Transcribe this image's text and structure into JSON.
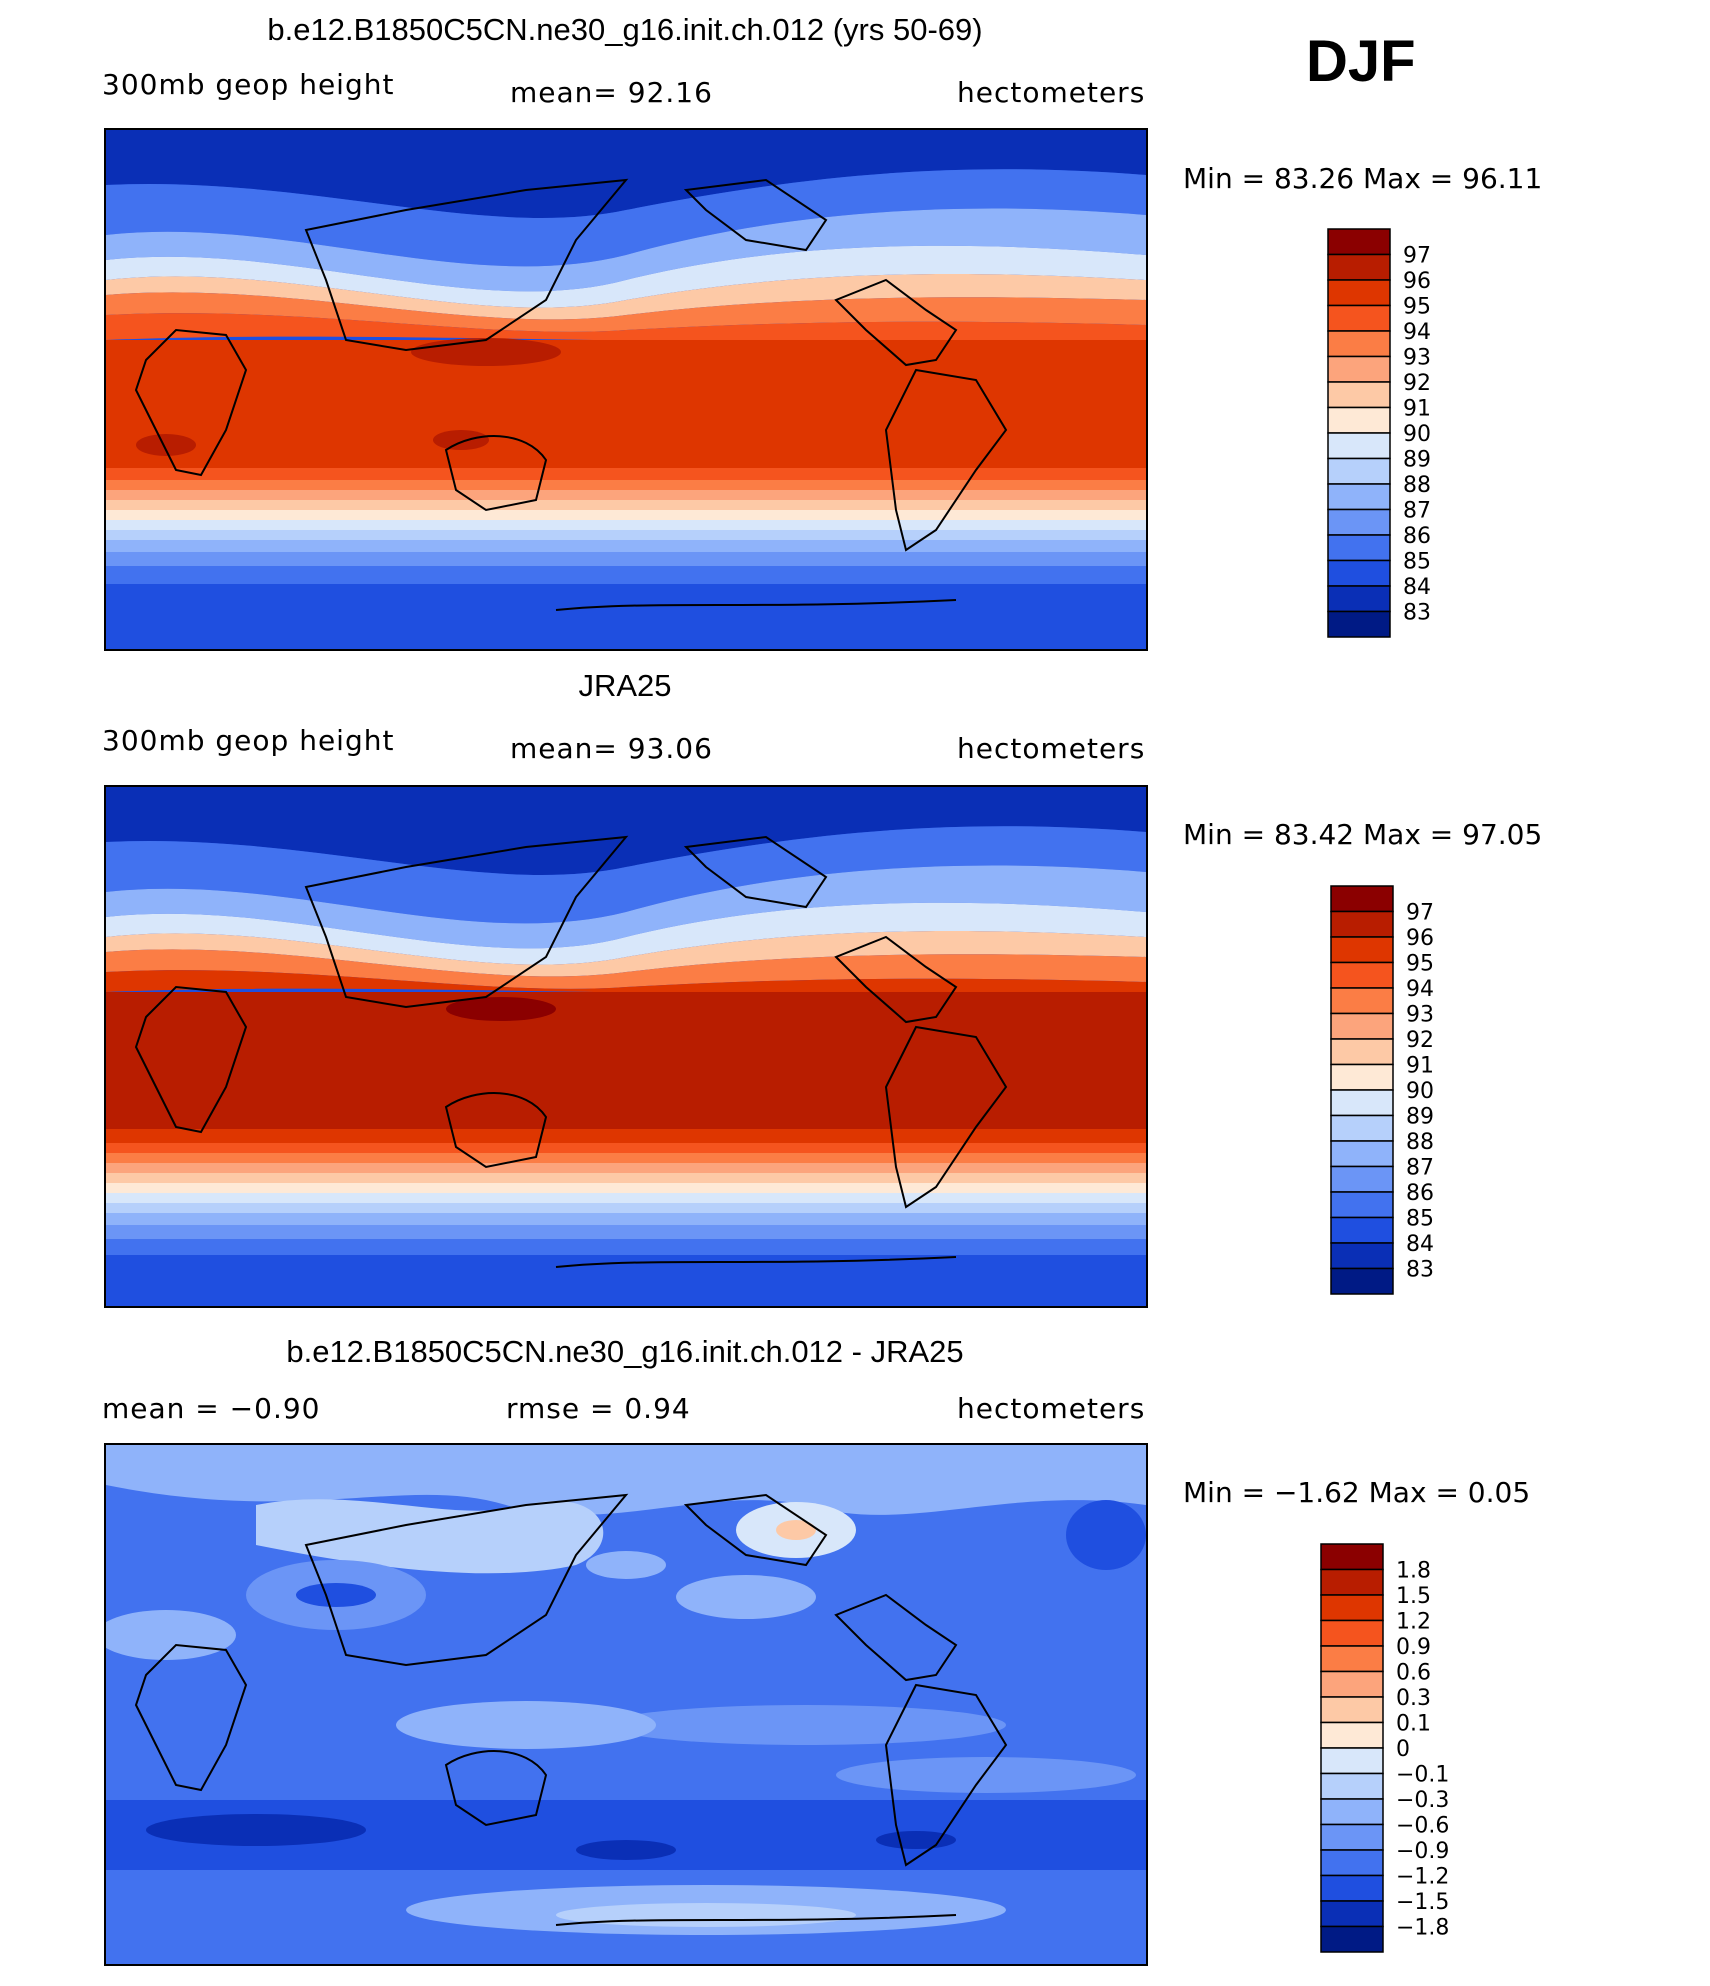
{
  "season": "DJF",
  "panels": [
    {
      "title": "b.e12.B1850C5CN.ne30_g16.init.ch.012 (yrs 50-69)",
      "left_label": "300mb  geop  height",
      "center_label": "mean=   92.16",
      "right_label": "hectometers",
      "minmax": "Min  =    83.26  Max  =    96.11"
    },
    {
      "title": "JRA25",
      "left_label": "300mb  geop  height",
      "center_label": "mean=   93.06",
      "right_label": "hectometers",
      "minmax": "Min  =    83.42  Max  =    97.05"
    },
    {
      "title": "b.e12.B1850C5CN.ne30_g16.init.ch.012 - JRA25",
      "left_label": "mean  =    −0.90",
      "center_label": "rmse  =     0.94",
      "right_label": "hectometers",
      "minmax": "Min  =   −1.62  Max  =     0.05"
    }
  ],
  "chart_data": [
    {
      "type": "heatmap",
      "title": "b.e12.B1850C5CN.ne30_g16.init.ch.012 (yrs 50-69)",
      "variable": "300mb geop height",
      "units": "hectometers",
      "mean": 92.16,
      "min": 83.26,
      "max": 96.11,
      "colorbar_levels": [
        "97",
        "96",
        "95",
        "94",
        "93",
        "92",
        "91",
        "90",
        "89",
        "88",
        "87",
        "86",
        "85",
        "84",
        "83"
      ],
      "colorbar_colors": [
        "#8b0000",
        "#b81d00",
        "#de3600",
        "#f5541e",
        "#fb7d45",
        "#fca47c",
        "#fdc9a6",
        "#fee9d6",
        "#d8e7fa",
        "#b6d0fb",
        "#8fb3fa",
        "#6b95f6",
        "#4272ef",
        "#1f4fe0",
        "#0a2fb6",
        "#001a85"
      ]
    },
    {
      "type": "heatmap",
      "title": "JRA25",
      "variable": "300mb geop height",
      "units": "hectometers",
      "mean": 93.06,
      "min": 83.42,
      "max": 97.05,
      "colorbar_levels": [
        "97",
        "96",
        "95",
        "94",
        "93",
        "92",
        "91",
        "90",
        "89",
        "88",
        "87",
        "86",
        "85",
        "84",
        "83"
      ],
      "colorbar_colors": [
        "#8b0000",
        "#b81d00",
        "#de3600",
        "#f5541e",
        "#fb7d45",
        "#fca47c",
        "#fdc9a6",
        "#fee9d6",
        "#d8e7fa",
        "#b6d0fb",
        "#8fb3fa",
        "#6b95f6",
        "#4272ef",
        "#1f4fe0",
        "#0a2fb6",
        "#001a85"
      ]
    },
    {
      "type": "heatmap",
      "title": "b.e12.B1850C5CN.ne30_g16.init.ch.012 - JRA25",
      "units": "hectometers",
      "mean": -0.9,
      "rmse": 0.94,
      "min": -1.62,
      "max": 0.05,
      "colorbar_levels": [
        "1.8",
        "1.5",
        "1.2",
        "0.9",
        "0.6",
        "0.3",
        "0.1",
        "0",
        "−0.1",
        "−0.3",
        "−0.6",
        "−0.9",
        "−1.2",
        "−1.5",
        "−1.8"
      ],
      "colorbar_colors": [
        "#8b0000",
        "#b81d00",
        "#de3600",
        "#f5541e",
        "#fb7d45",
        "#fca47c",
        "#fdc9a6",
        "#fee9d6",
        "#d8e7fa",
        "#b6d0fb",
        "#8fb3fa",
        "#6b95f6",
        "#4272ef",
        "#1f4fe0",
        "#0a2fb6",
        "#001a85"
      ]
    }
  ]
}
